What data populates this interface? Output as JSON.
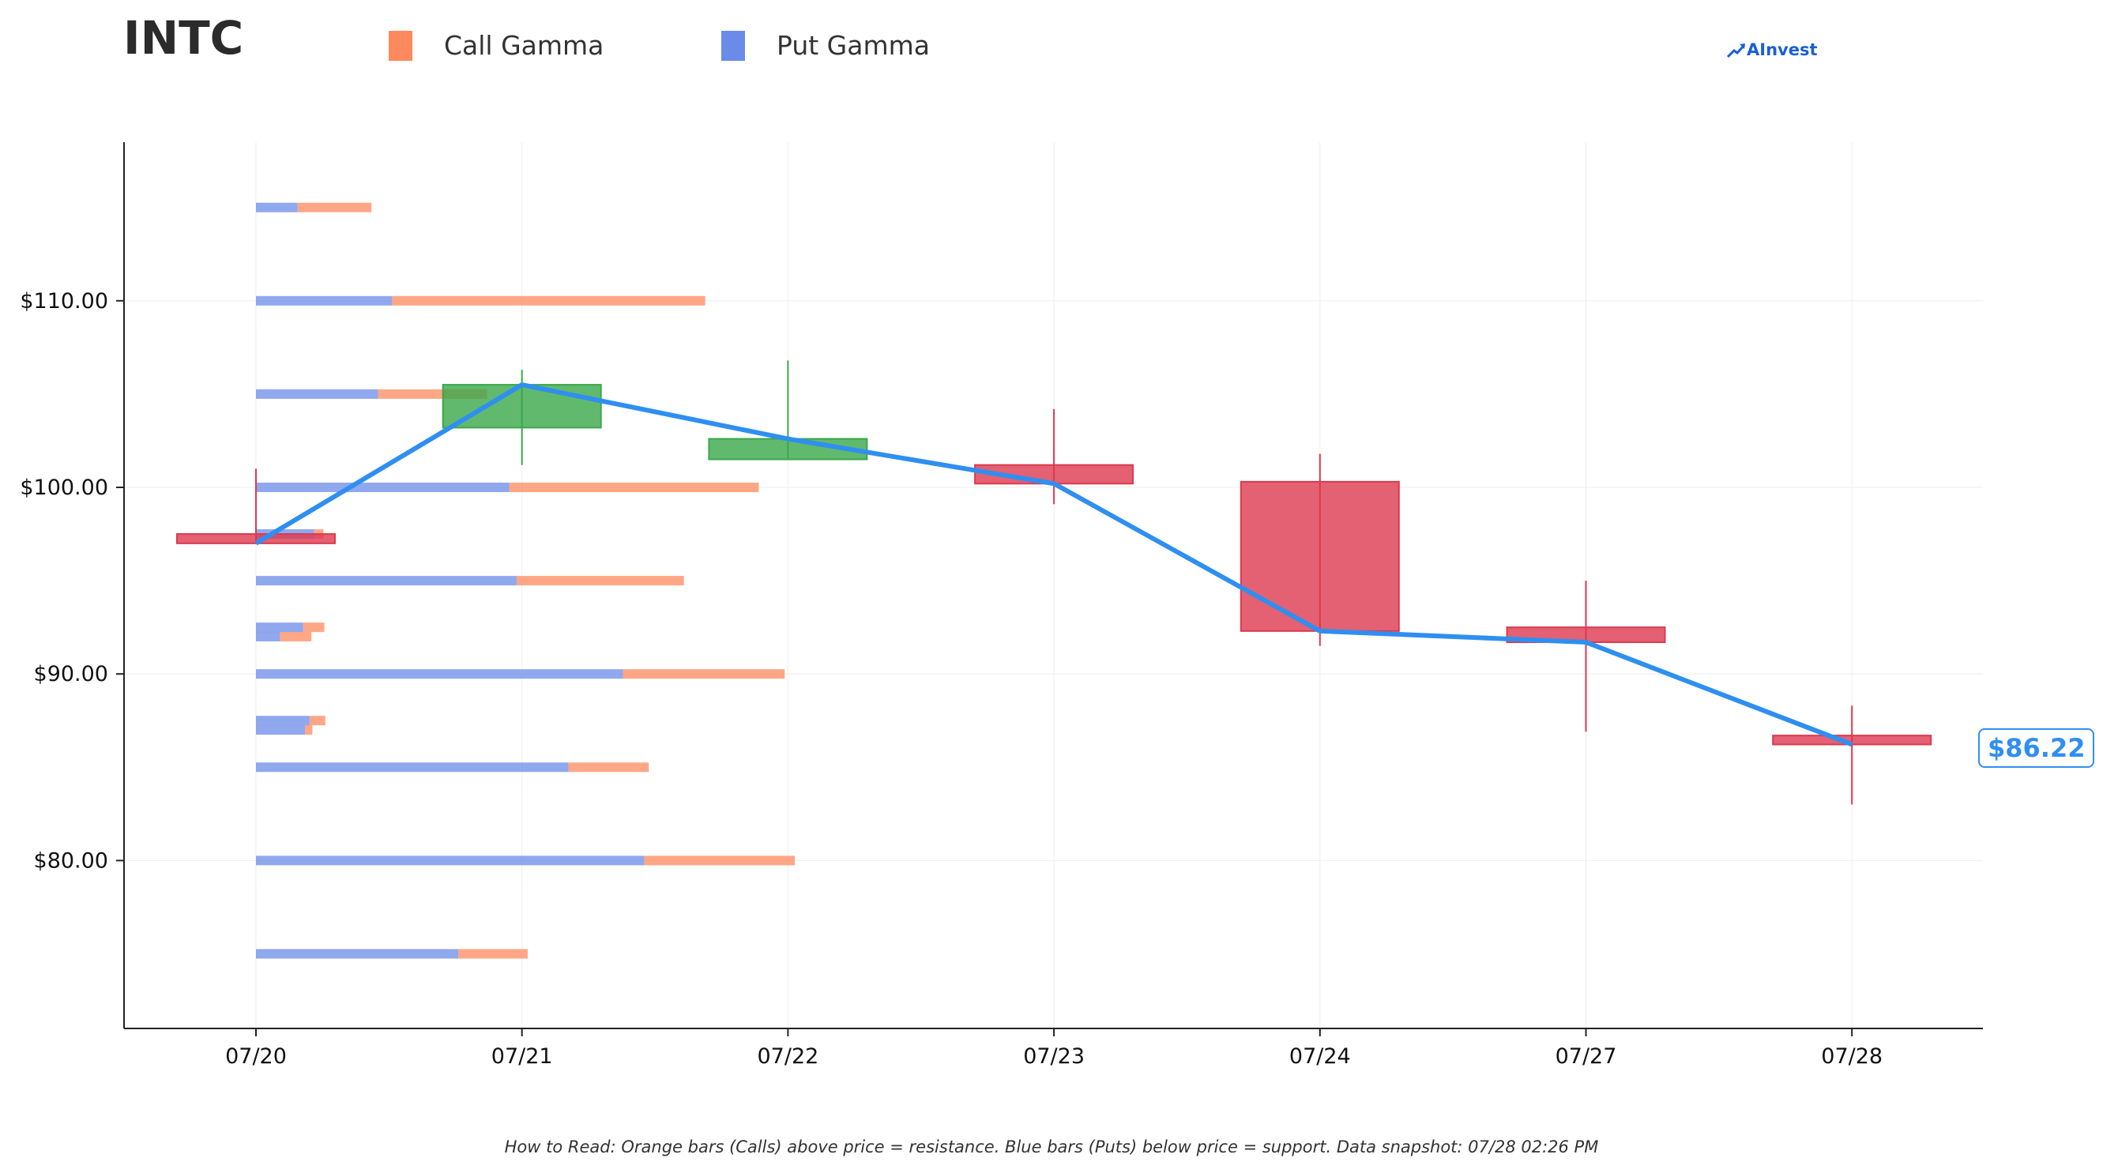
{
  "header": {
    "ticker": "INTC",
    "legend": [
      {
        "label": "Call Gamma",
        "color": "#fd8a5e"
      },
      {
        "label": "Put Gamma",
        "color": "#6a8be8"
      }
    ],
    "brand": "AInvest",
    "brand_icon": "chart-up-icon"
  },
  "price_tag": "$86.22",
  "footer": "How to Read: Orange bars (Calls) above price = resistance. Blue bars (Puts) below price = support. Data snapshot: 07/28 02:26 PM",
  "colors": {
    "call": "#fd8a5e",
    "put": "#6a8be8",
    "up": "#3aa84a",
    "down": "#dc3a4f",
    "line": "#2f8ff0",
    "axis": "#222222",
    "grid": "#eeeeee"
  },
  "chart_data": {
    "type": "candlestick",
    "ylim": [
      71,
      118.5
    ],
    "grid": true,
    "y_ticks": [
      {
        "value": 80,
        "label": "$80.00"
      },
      {
        "value": 90,
        "label": "$90.00"
      },
      {
        "value": 100,
        "label": "$100.00"
      },
      {
        "value": 110,
        "label": "$110.00"
      }
    ],
    "categories": [
      "07/20",
      "07/21",
      "07/22",
      "07/23",
      "07/24",
      "07/27",
      "07/28"
    ],
    "candles": [
      {
        "date": "07/20",
        "open": 97.5,
        "high": 101.0,
        "low": 97.0,
        "close": 97.0
      },
      {
        "date": "07/21",
        "open": 103.2,
        "high": 106.3,
        "low": 101.2,
        "close": 105.5
      },
      {
        "date": "07/22",
        "open": 101.5,
        "high": 106.8,
        "low": 101.5,
        "close": 102.6
      },
      {
        "date": "07/23",
        "open": 101.2,
        "high": 104.2,
        "low": 99.1,
        "close": 100.2
      },
      {
        "date": "07/24",
        "open": 100.3,
        "high": 101.8,
        "low": 91.5,
        "close": 92.3
      },
      {
        "date": "07/27",
        "open": 92.5,
        "high": 95.0,
        "low": 86.9,
        "close": 91.7
      },
      {
        "date": "07/28",
        "open": 86.7,
        "high": 88.3,
        "low": 83.0,
        "close": 86.22
      }
    ],
    "close_line": [
      97.0,
      105.5,
      102.6,
      100.2,
      92.3,
      91.7,
      86.22
    ],
    "gamma_scale_max": 100,
    "gamma_levels": [
      {
        "strike": 115.0,
        "put": 4.5,
        "call": 8.0
      },
      {
        "strike": 110.0,
        "put": 14.7,
        "call": 33.9
      },
      {
        "strike": 105.0,
        "put": 13.2,
        "call": 11.8
      },
      {
        "strike": 100.0,
        "put": 27.4,
        "call": 27.0
      },
      {
        "strike": 97.5,
        "put": 6.3,
        "call": 1.0
      },
      {
        "strike": 95.0,
        "put": 28.2,
        "call": 18.1
      },
      {
        "strike": 92.5,
        "put": 5.1,
        "call": 2.3
      },
      {
        "strike": 92.0,
        "put": 2.6,
        "call": 3.4
      },
      {
        "strike": 90.0,
        "put": 39.7,
        "call": 17.5
      },
      {
        "strike": 87.5,
        "put": 5.8,
        "call": 1.7
      },
      {
        "strike": 87.0,
        "put": 5.3,
        "call": 0.8
      },
      {
        "strike": 85.0,
        "put": 33.8,
        "call": 8.7
      },
      {
        "strike": 80.0,
        "put": 42.0,
        "call": 16.3
      },
      {
        "strike": 75.0,
        "put": 21.9,
        "call": 7.5
      }
    ]
  }
}
